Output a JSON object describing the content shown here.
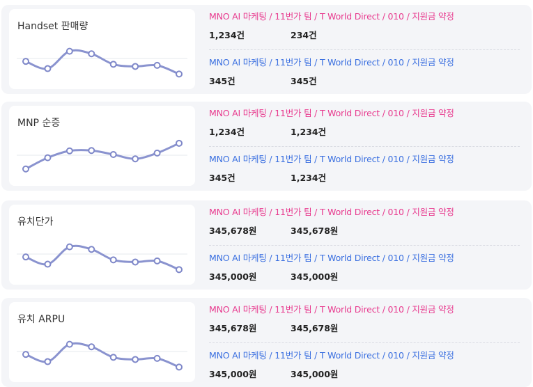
{
  "colors": {
    "pink": "#e83a8e",
    "blue": "#3a6fe0",
    "spark_line": "#8a93cf",
    "spark_point": "#7f88c9"
  },
  "sections": [
    {
      "title": "Handset 판매량",
      "spark": [
        0.42,
        0.22,
        0.7,
        0.63,
        0.34,
        0.28,
        0.31,
        0.07
      ],
      "rows": [
        {
          "label": "MNO AI 마케팅 / 11번가 팀 / T World Direct / 010 / 지원금 약정",
          "v1": "1,234건",
          "v2": "234건"
        },
        {
          "label": "MNO AI 마케팅 / 11번가 팀 / T World Direct / 010 / 지원금 약정",
          "v1": "345건",
          "v2": "345건"
        }
      ]
    },
    {
      "title": "MNP 순증",
      "spark": [
        0.12,
        0.43,
        0.62,
        0.63,
        0.52,
        0.4,
        0.56,
        0.83
      ],
      "rows": [
        {
          "label": "MNO AI 마케팅 / 11번가 팀 / T World Direct / 010 / 지원금 약정",
          "v1": "1,234건",
          "v2": "1,234건"
        },
        {
          "label": "MNO AI 마케팅 / 11번가 팀 / T World Direct / 010 / 지원금 약정",
          "v1": "345건",
          "v2": "1,234건"
        }
      ]
    },
    {
      "title": "유치단가",
      "spark": [
        0.42,
        0.22,
        0.7,
        0.63,
        0.34,
        0.28,
        0.31,
        0.07
      ],
      "rows": [
        {
          "label": "MNO AI 마케팅 / 11번가 팀 / T World Direct / 010 / 지원금 약정",
          "v1": "345,678원",
          "v2": "345,678원"
        },
        {
          "label": "MNO AI 마케팅 / 11번가 팀 / T World Direct / 010 / 지원금 약정",
          "v1": "345,000원",
          "v2": "345,000원"
        }
      ]
    },
    {
      "title": "유치 ARPU",
      "spark": [
        0.42,
        0.22,
        0.7,
        0.63,
        0.34,
        0.28,
        0.31,
        0.07
      ],
      "rows": [
        {
          "label": "MNO AI 마케팅 / 11번가 팀 / T World Direct / 010 / 지원금 약정",
          "v1": "345,678원",
          "v2": "345,678원"
        },
        {
          "label": "MNO AI 마케팅 / 11번가 팀 / T World Direct / 010 / 지원금 약정",
          "v1": "345,000원",
          "v2": "345,000원"
        }
      ]
    }
  ]
}
